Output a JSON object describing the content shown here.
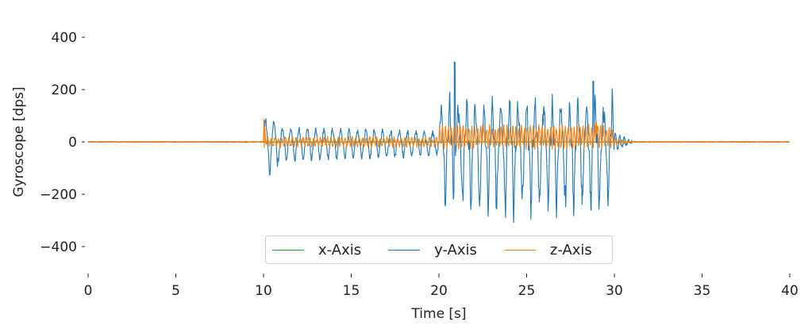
{
  "chart_data": {
    "type": "line",
    "title": "",
    "xlabel": "Time [s]",
    "ylabel": "Gyroscope [dps]",
    "xlim": [
      0,
      40
    ],
    "ylim": [
      -490,
      460
    ],
    "xticks": [
      0,
      5,
      10,
      15,
      20,
      25,
      30,
      35,
      40
    ],
    "yticks": [
      -400,
      -200,
      0,
      200,
      400
    ],
    "ytick_labels": [
      "−400",
      "−200",
      "0",
      "200",
      "400"
    ],
    "grid": false,
    "legend_position": "lower center",
    "series": [
      {
        "name": "x-Axis",
        "color": "#2ca02c",
        "description": "near zero throughout (hidden beneath others)"
      },
      {
        "name": "y-Axis",
        "color": "#1f77b4",
        "description": "flat ~0 from 0-10s; oscillation ~±60 (peaks ~130, troughs ~-145) from 10-20s; larger oscillation ~+100/-250 (peak ~305 at ~20.9s, ~230 at ~28.8s, troughs ~-285) from 20-30s; decays to ~0 by ~31s; flat to 40s"
      },
      {
        "name": "z-Axis",
        "color": "#ff7f0e",
        "description": "flat ~0; spike ~105 at 10s; small oscillation ~±20 from 10-20s; ~±60 from 20-30s; flat after ~31s"
      }
    ],
    "segments": [
      {
        "t_start": 0,
        "t_end": 10,
        "y_amp": 2,
        "z_amp": 2
      },
      {
        "t_start": 10,
        "t_end": 20,
        "y_peak": 130,
        "y_trough": -145,
        "z_amp": 20
      },
      {
        "t_start": 20,
        "t_end": 30,
        "y_peak": 305,
        "y_trough": -285,
        "z_amp": 60
      },
      {
        "t_start": 30,
        "t_end": 31,
        "y_amp": 40,
        "z_amp": 10
      },
      {
        "t_start": 31,
        "t_end": 40,
        "y_amp": 2,
        "z_amp": 2
      }
    ]
  },
  "legend": {
    "items": [
      {
        "label": "x-Axis",
        "color": "#2ca02c"
      },
      {
        "label": "y-Axis",
        "color": "#1f77b4"
      },
      {
        "label": "z-Axis",
        "color": "#ff7f0e"
      }
    ]
  }
}
